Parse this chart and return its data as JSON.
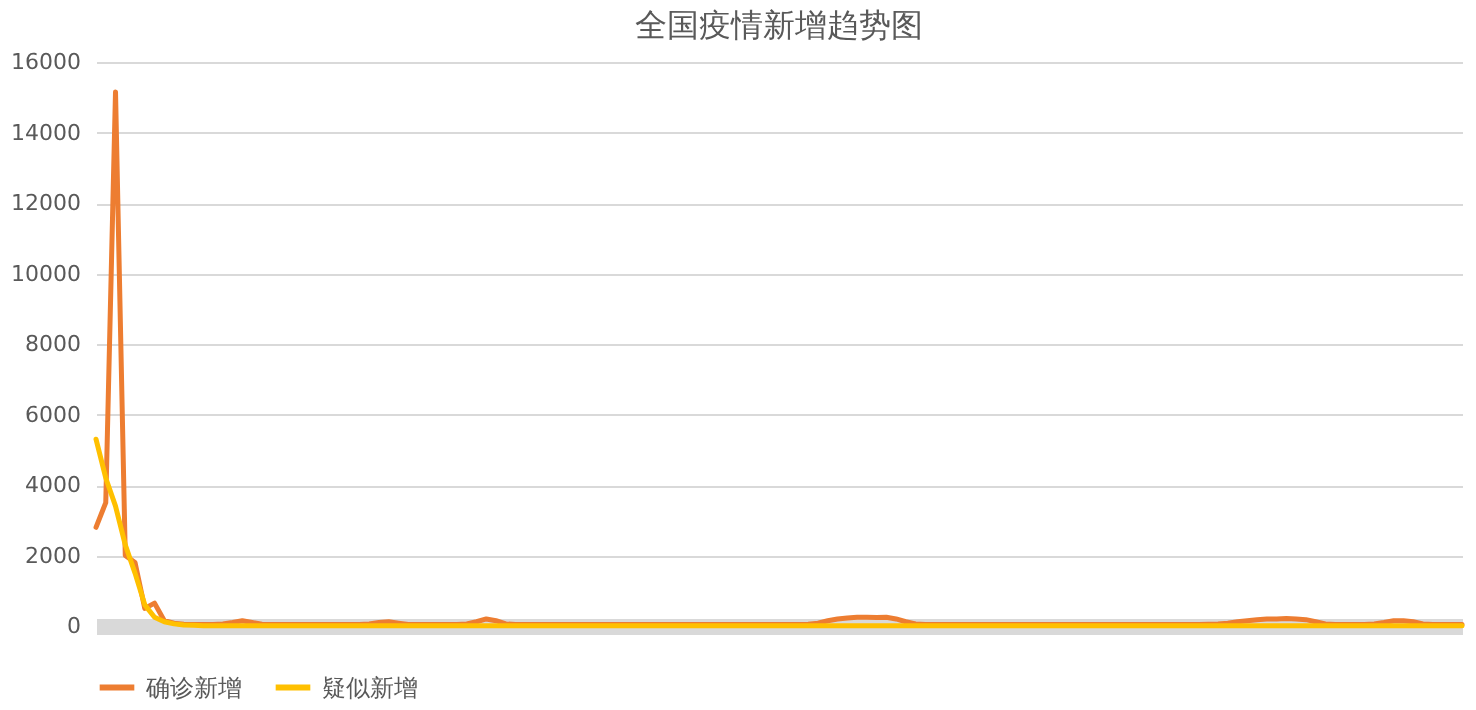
{
  "chart_data": {
    "type": "line",
    "title": "全国疫情新增趋势图",
    "categories": [
      null,
      null,
      null,
      null,
      null,
      null,
      null,
      null,
      null,
      null,
      null,
      null,
      null,
      null,
      null,
      null,
      null,
      null,
      null,
      null,
      null,
      null,
      null,
      null,
      null,
      null,
      null,
      null,
      null,
      null,
      null,
      null,
      null,
      null,
      null,
      null,
      null,
      null,
      null,
      null,
      null,
      null,
      null,
      null,
      null,
      null,
      null,
      null,
      null,
      null,
      null,
      null,
      null,
      null,
      null,
      null,
      null,
      null,
      null,
      null,
      null,
      null,
      null,
      null,
      null,
      null,
      null,
      null,
      null,
      null,
      null,
      null,
      null,
      null,
      null,
      null,
      null,
      null,
      null,
      null,
      null,
      null,
      null,
      null,
      null,
      null,
      null,
      null,
      null,
      null,
      null,
      null,
      null,
      null,
      null,
      null,
      null,
      null,
      null,
      null,
      null,
      null,
      null,
      null,
      null,
      null,
      null,
      null,
      null,
      null,
      null,
      null,
      null,
      null,
      null,
      null,
      null,
      null,
      null,
      null,
      null,
      null,
      null,
      null,
      null,
      null,
      null,
      null,
      null,
      null,
      null,
      null,
      null,
      null,
      null,
      null,
      null,
      null,
      null,
      null,
      null
    ],
    "series": [
      {
        "name": "确诊新增",
        "color": "#ed7d31",
        "values": [
          2800,
          3500,
          15152,
          2000,
          1800,
          500,
          650,
          150,
          80,
          50,
          40,
          40,
          40,
          60,
          100,
          150,
          100,
          50,
          40,
          40,
          40,
          40,
          40,
          40,
          40,
          40,
          40,
          40,
          60,
          100,
          120,
          80,
          40,
          40,
          40,
          40,
          40,
          40,
          60,
          120,
          200,
          150,
          60,
          40,
          40,
          40,
          40,
          40,
          40,
          40,
          40,
          40,
          40,
          40,
          40,
          40,
          40,
          40,
          40,
          40,
          40,
          40,
          40,
          40,
          40,
          40,
          40,
          40,
          40,
          40,
          40,
          40,
          40,
          50,
          80,
          150,
          200,
          230,
          250,
          250,
          240,
          250,
          200,
          120,
          60,
          40,
          40,
          40,
          40,
          40,
          40,
          40,
          40,
          40,
          40,
          40,
          40,
          40,
          40,
          40,
          40,
          40,
          40,
          40,
          40,
          40,
          40,
          40,
          40,
          40,
          40,
          40,
          40,
          40,
          50,
          60,
          80,
          120,
          150,
          180,
          200,
          200,
          210,
          200,
          180,
          120,
          60,
          40,
          40,
          40,
          40,
          60,
          100,
          150,
          150,
          120,
          60,
          40,
          40,
          40,
          40
        ]
      },
      {
        "name": "疑似新增",
        "color": "#ffc000",
        "values": [
          5300,
          4200,
          3400,
          2300,
          1500,
          600,
          250,
          120,
          60,
          30,
          20,
          10,
          10,
          8,
          8,
          8,
          5,
          5,
          5,
          5,
          5,
          5,
          5,
          5,
          5,
          5,
          5,
          5,
          5,
          5,
          5,
          5,
          5,
          5,
          5,
          5,
          5,
          5,
          5,
          5,
          5,
          5,
          5,
          5,
          5,
          5,
          5,
          5,
          5,
          5,
          5,
          5,
          5,
          5,
          5,
          5,
          5,
          5,
          5,
          5,
          5,
          5,
          5,
          5,
          5,
          5,
          5,
          5,
          5,
          5,
          5,
          5,
          5,
          5,
          5,
          5,
          5,
          5,
          5,
          5,
          5,
          5,
          5,
          5,
          5,
          5,
          5,
          5,
          5,
          5,
          5,
          5,
          5,
          5,
          5,
          5,
          5,
          5,
          5,
          5,
          5,
          5,
          5,
          5,
          5,
          5,
          5,
          5,
          5,
          5,
          5,
          5,
          5,
          5,
          5,
          5,
          5,
          5,
          5,
          5,
          5,
          5,
          5,
          5,
          5,
          5,
          5,
          5,
          5,
          5,
          5,
          5,
          5,
          5,
          5,
          5,
          5,
          5,
          5,
          5,
          5
        ]
      }
    ],
    "ylim": [
      0,
      16000
    ],
    "yticks": [
      0,
      2000,
      4000,
      6000,
      8000,
      10000,
      12000,
      14000,
      16000
    ],
    "grid": "y",
    "legend": "bottom",
    "tick_labels": "y"
  }
}
